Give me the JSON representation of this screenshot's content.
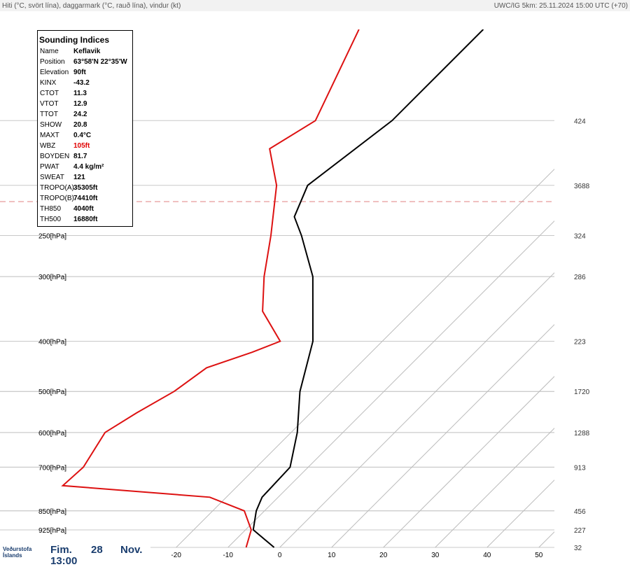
{
  "header": {
    "left": "Hiti (°C, svört lína), daggarmark (°C, rauð lína), vindur (kt)",
    "right": "UWC/IG 5km: 25.11.2024 15:00 UTC (+70)"
  },
  "indices": {
    "title": "Sounding Indices",
    "rows": [
      {
        "label": "Name",
        "value": "Keflavik"
      },
      {
        "label": "Position",
        "value": "63°58'N 22°35'W"
      },
      {
        "label": "Elevation",
        "value": "90ft"
      },
      {
        "label": "KINX",
        "value": "-43.2"
      },
      {
        "label": "CTOT",
        "value": "11.3"
      },
      {
        "label": "VTOT",
        "value": "12.9"
      },
      {
        "label": "TTOT",
        "value": "24.2"
      },
      {
        "label": "SHOW",
        "value": "20.8"
      },
      {
        "label": "MAXT",
        "value": "0.4°C"
      },
      {
        "label": "WBZ",
        "value": "105ft",
        "color": "#e00000"
      },
      {
        "label": "BOYDEN",
        "value": "81.7"
      },
      {
        "label": "PWAT",
        "value": "4.4 kg/m²"
      },
      {
        "label": "SWEAT",
        "value": "121"
      },
      {
        "label": "TROPO(A)",
        "value": "35305ft"
      },
      {
        "label": "TROPO(B)",
        "value": "74410ft"
      },
      {
        "label": "TH850",
        "value": "4040ft"
      },
      {
        "label": "TH500",
        "value": "16880ft"
      }
    ]
  },
  "chart_data": {
    "type": "skewt",
    "ylim": [
      1000,
      100
    ],
    "log_y": true,
    "yticks": [
      {
        "value": 250,
        "label": "250[hPa]"
      },
      {
        "value": 300,
        "label": "300[hPa]"
      },
      {
        "value": 400,
        "label": "400[hPa]"
      },
      {
        "value": 500,
        "label": "500[hPa]"
      },
      {
        "value": 600,
        "label": "600[hPa]"
      },
      {
        "value": 700,
        "label": "700[hPa]"
      },
      {
        "value": 850,
        "label": "850[hPa]"
      },
      {
        "value": 925,
        "label": "925[hPa]"
      }
    ],
    "height_labels": [
      {
        "value": 150,
        "label": "424"
      },
      {
        "value": 200,
        "label": "3688"
      },
      {
        "value": 250,
        "label": "324"
      },
      {
        "value": 300,
        "label": "286"
      },
      {
        "value": 400,
        "label": "223"
      },
      {
        "value": 500,
        "label": "1720"
      },
      {
        "value": 600,
        "label": "1288"
      },
      {
        "value": 700,
        "label": "913"
      },
      {
        "value": 850,
        "label": "456"
      },
      {
        "value": 925,
        "label": "227"
      },
      {
        "value": 1000,
        "label": "32"
      }
    ],
    "xlim": [
      -54,
      53
    ],
    "xticks": [
      -20,
      -10,
      0,
      10,
      20,
      30,
      40,
      50
    ],
    "tropopause": 215,
    "series": [
      {
        "color": "#000000",
        "pressure": [
          1000,
          925,
          850,
          800,
          700,
          600,
          500,
          400,
          300,
          250,
          230,
          200,
          150,
          100
        ],
        "values": [
          -1.1,
          -8.5,
          -11.6,
          -13.1,
          -13.5,
          -18.8,
          -26.2,
          -33.4,
          -45.9,
          -56,
          -61,
          -64.5,
          -60.7,
          -60.7
        ]
      },
      {
        "color": "#dd1111",
        "pressure": [
          1000,
          925,
          850,
          800,
          760,
          700,
          600,
          550,
          500,
          450,
          420,
          400,
          350,
          300,
          250,
          200,
          170,
          150,
          100
        ],
        "values": [
          -6.5,
          -8.9,
          -13.9,
          -23.2,
          -53.8,
          -53.4,
          -55.9,
          -53.6,
          -50.5,
          -48.8,
          -43,
          -39.7,
          -48.9,
          -55.3,
          -61.9,
          -70.5,
          -78.9,
          -75.5,
          -84.7
        ]
      }
    ]
  },
  "footer": {
    "logo": "Veðurstofa Íslands",
    "day": "Fim.",
    "date": "28",
    "month": "Nov.",
    "time": "13:00"
  }
}
